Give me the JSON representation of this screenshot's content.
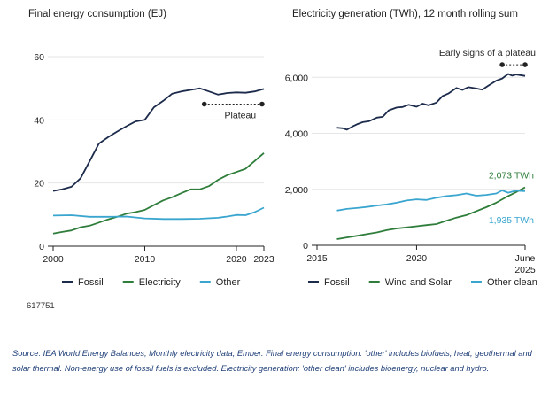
{
  "source_note": "Source: IEA World Energy Balances, Monthly electricity data, Ember. Final energy consumption: 'other' includes biofuels, heat, geothermal and solar thermal. Non-energy use of fossil fuels is excluded. Electricity generation: 'other clean' includes bioenergy, nuclear and hydro.",
  "figure_code": "617751",
  "chart_data": [
    {
      "type": "line",
      "title": "Final energy consumption (EJ)",
      "xlim": [
        2000,
        2023
      ],
      "ylim": [
        0,
        60
      ],
      "xticks": [
        "2000",
        "2010",
        "2020",
        "2023"
      ],
      "xtick_values": [
        2000,
        2010,
        2020,
        2023
      ],
      "yticks": [
        "0",
        "20",
        "40",
        "60"
      ],
      "ytick_values": [
        0,
        20,
        40,
        60
      ],
      "grid": "horizontal",
      "legend": "bottom",
      "annotations": [
        {
          "text": "Plateau",
          "x1": 2016.5,
          "x2": 2022.8,
          "y": 45
        }
      ],
      "series": [
        {
          "name": "Fossil",
          "color": "#1c2b4b",
          "points": [
            [
              2000,
              17.5
            ],
            [
              2001,
              18.0
            ],
            [
              2002,
              18.8
            ],
            [
              2003,
              21.5
            ],
            [
              2004,
              27.0
            ],
            [
              2005,
              32.5
            ],
            [
              2006,
              34.5
            ],
            [
              2007,
              36.3
            ],
            [
              2008,
              38.0
            ],
            [
              2009,
              39.5
            ],
            [
              2010,
              40.0
            ],
            [
              2011,
              44.0
            ],
            [
              2012,
              46.0
            ],
            [
              2013,
              48.3
            ],
            [
              2014,
              49.0
            ],
            [
              2015,
              49.5
            ],
            [
              2016,
              50.0
            ],
            [
              2017,
              49.0
            ],
            [
              2018,
              48.0
            ],
            [
              2019,
              48.5
            ],
            [
              2020,
              48.7
            ],
            [
              2021,
              48.6
            ],
            [
              2022,
              49.0
            ],
            [
              2023,
              49.8
            ]
          ]
        },
        {
          "name": "Electricity",
          "color": "#2e7d3a",
          "points": [
            [
              2000,
              4.0
            ],
            [
              2001,
              4.5
            ],
            [
              2002,
              5.0
            ],
            [
              2003,
              6.0
            ],
            [
              2004,
              6.5
            ],
            [
              2005,
              7.5
            ],
            [
              2006,
              8.5
            ],
            [
              2007,
              9.3
            ],
            [
              2008,
              10.3
            ],
            [
              2009,
              10.8
            ],
            [
              2010,
              11.5
            ],
            [
              2011,
              13.0
            ],
            [
              2012,
              14.5
            ],
            [
              2013,
              15.5
            ],
            [
              2014,
              16.8
            ],
            [
              2015,
              18.0
            ],
            [
              2016,
              18.0
            ],
            [
              2017,
              19.0
            ],
            [
              2018,
              21.0
            ],
            [
              2019,
              22.5
            ],
            [
              2020,
              23.5
            ],
            [
              2021,
              24.5
            ],
            [
              2022,
              27.0
            ],
            [
              2023,
              29.5
            ]
          ]
        },
        {
          "name": "Other",
          "color": "#3aa6cf",
          "points": [
            [
              2000,
              9.7
            ],
            [
              2002,
              9.8
            ],
            [
              2004,
              9.3
            ],
            [
              2006,
              9.3
            ],
            [
              2008,
              9.4
            ],
            [
              2010,
              8.8
            ],
            [
              2012,
              8.6
            ],
            [
              2014,
              8.6
            ],
            [
              2016,
              8.7
            ],
            [
              2018,
              9.0
            ],
            [
              2019,
              9.4
            ],
            [
              2020,
              9.9
            ],
            [
              2021,
              9.8
            ],
            [
              2022,
              10.8
            ],
            [
              2023,
              12.2
            ]
          ]
        }
      ]
    },
    {
      "type": "line",
      "title": "Electricity generation (TWh), 12 month rolling sum",
      "xlim": [
        2015,
        2025.45
      ],
      "ylim": [
        0,
        6800
      ],
      "xticks": [
        "2015",
        "2020",
        "June 2025"
      ],
      "xtick_values": [
        2015,
        2020,
        2025.45
      ],
      "yticks": [
        "0",
        "2,000",
        "4,000",
        "6,000"
      ],
      "ytick_values": [
        0,
        2000,
        4000,
        6000
      ],
      "grid": "horizontal",
      "legend": "bottom",
      "annotations": [
        {
          "text": "Early signs of a plateau",
          "x1": 2024.3,
          "x2": 2025.45,
          "y": 6450
        }
      ],
      "value_labels": [
        {
          "text": "2,073 TWh",
          "series": "Wind and Solar",
          "value": 2073,
          "color": "#2e7d3a"
        },
        {
          "text": "1,935 TWh",
          "series": "Other clean",
          "value": 1935,
          "color": "#3aa6cf"
        }
      ],
      "series": [
        {
          "name": "Fossil",
          "color": "#1c2b4b",
          "points": [
            [
              2016,
              4200
            ],
            [
              2016.3,
              4180
            ],
            [
              2016.5,
              4130
            ],
            [
              2016.8,
              4250
            ],
            [
              2017,
              4320
            ],
            [
              2017.3,
              4400
            ],
            [
              2017.6,
              4430
            ],
            [
              2018,
              4560
            ],
            [
              2018.3,
              4590
            ],
            [
              2018.6,
              4820
            ],
            [
              2019,
              4920
            ],
            [
              2019.3,
              4940
            ],
            [
              2019.6,
              5020
            ],
            [
              2020,
              4950
            ],
            [
              2020.3,
              5060
            ],
            [
              2020.6,
              5000
            ],
            [
              2021,
              5100
            ],
            [
              2021.3,
              5330
            ],
            [
              2021.6,
              5420
            ],
            [
              2022,
              5620
            ],
            [
              2022.3,
              5550
            ],
            [
              2022.6,
              5650
            ],
            [
              2023,
              5600
            ],
            [
              2023.3,
              5560
            ],
            [
              2023.6,
              5700
            ],
            [
              2024,
              5880
            ],
            [
              2024.3,
              5960
            ],
            [
              2024.6,
              6120
            ],
            [
              2024.8,
              6060
            ],
            [
              2025,
              6100
            ],
            [
              2025.2,
              6080
            ],
            [
              2025.45,
              6050
            ]
          ]
        },
        {
          "name": "Wind and Solar",
          "color": "#2e7d3a",
          "points": [
            [
              2016,
              220
            ],
            [
              2016.5,
              280
            ],
            [
              2017,
              340
            ],
            [
              2017.5,
              400
            ],
            [
              2018,
              460
            ],
            [
              2018.5,
              540
            ],
            [
              2019,
              600
            ],
            [
              2019.5,
              640
            ],
            [
              2020,
              680
            ],
            [
              2020.5,
              720
            ],
            [
              2021,
              760
            ],
            [
              2021.5,
              880
            ],
            [
              2022,
              990
            ],
            [
              2022.5,
              1080
            ],
            [
              2023,
              1220
            ],
            [
              2023.5,
              1360
            ],
            [
              2024,
              1520
            ],
            [
              2024.5,
              1720
            ],
            [
              2025,
              1900
            ],
            [
              2025.45,
              2073
            ]
          ]
        },
        {
          "name": "Other clean",
          "color": "#3aa6cf",
          "points": [
            [
              2016,
              1240
            ],
            [
              2016.5,
              1300
            ],
            [
              2017,
              1330
            ],
            [
              2017.5,
              1370
            ],
            [
              2018,
              1420
            ],
            [
              2018.5,
              1460
            ],
            [
              2019,
              1520
            ],
            [
              2019.5,
              1600
            ],
            [
              2020,
              1640
            ],
            [
              2020.5,
              1620
            ],
            [
              2021,
              1700
            ],
            [
              2021.5,
              1760
            ],
            [
              2022,
              1790
            ],
            [
              2022.5,
              1850
            ],
            [
              2023,
              1770
            ],
            [
              2023.5,
              1800
            ],
            [
              2024,
              1850
            ],
            [
              2024.3,
              1960
            ],
            [
              2024.6,
              1880
            ],
            [
              2025,
              1950
            ],
            [
              2025.45,
              1935
            ]
          ]
        }
      ]
    }
  ]
}
